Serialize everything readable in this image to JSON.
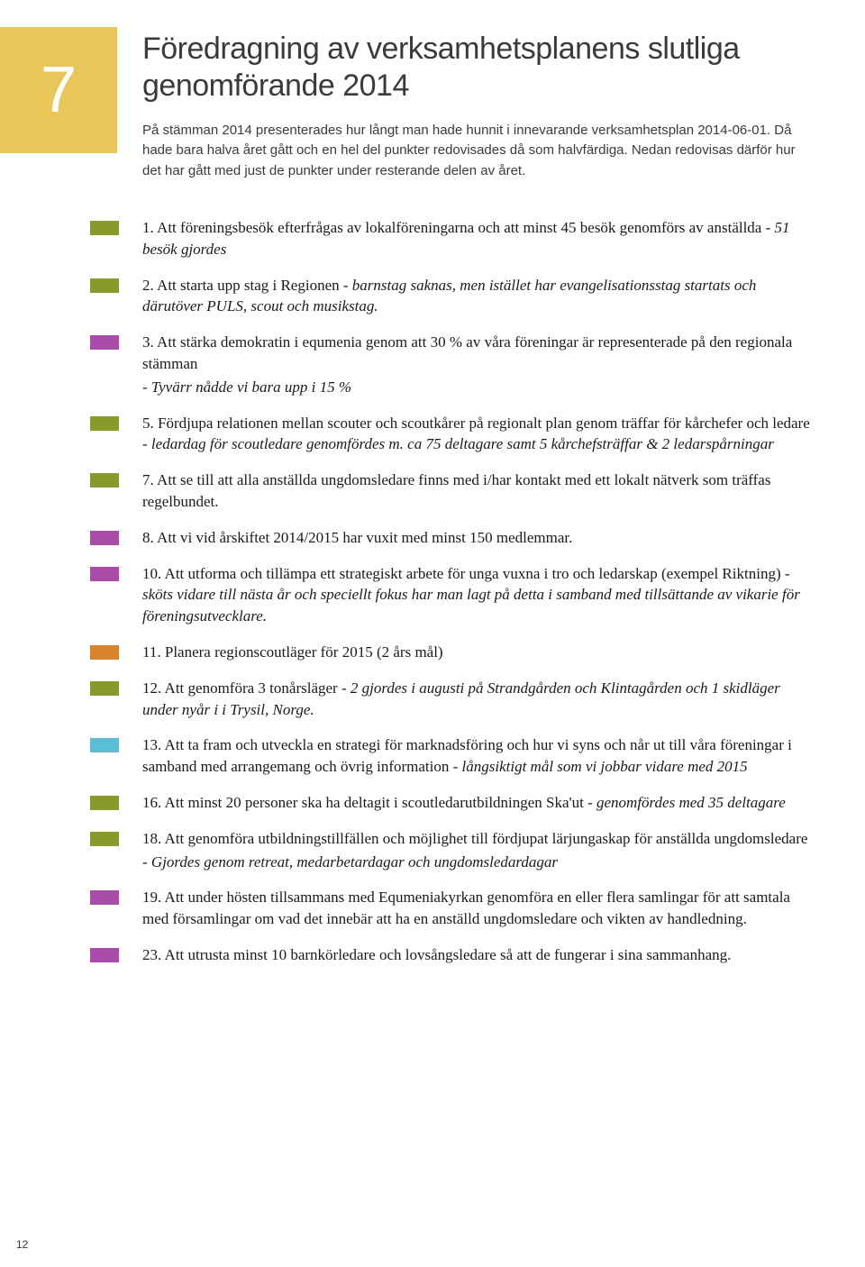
{
  "colors": {
    "number_box_bg": "#e8c65a",
    "olive": "#8a9a2a",
    "purple": "#a84ca8",
    "orange": "#d9822b",
    "cyan": "#5abfd6"
  },
  "section_number": "7",
  "title": "Föredragning av verksamhetsplanens slutliga genomförande 2014",
  "intro": "På stämman 2014 presenterades hur långt man hade hunnit i innevarande verksamhetsplan 2014-06-01. Då hade bara halva året gått och en hel del punkter redovisades då som halvfärdiga. Nedan redovisas därför hur det har gått med just de punkter under resterande delen av året.",
  "page_number": "12",
  "items": [
    {
      "color_key": "olive",
      "text": "1. Att föreningsbesök efterfrågas av lokalföreningarna och att minst 45 besök genomförs av anställda",
      "italic": " - 51 besök gjordes"
    },
    {
      "color_key": "olive",
      "text": "2. Att starta upp stag i Regionen",
      "italic": " - barnstag saknas, men istället har evangelisationsstag startats och därutöver PULS, scout och musikstag."
    },
    {
      "color_key": "purple",
      "text": "3. Att stärka demokratin i equmenia genom att 30 % av våra föreningar är representerade på den regionala stämman",
      "sub_italic": "- Tyvärr nådde vi bara upp i 15 %"
    },
    {
      "color_key": "olive",
      "text": "5. Fördjupa relationen mellan scouter och scoutkårer på regionalt plan genom träffar för kårchefer och ledare -",
      "italic": " ledardag för scoutledare genomfördes m. ca 75 deltagare samt 5 kårchefsträffar & 2 ledarspårningar"
    },
    {
      "color_key": "olive",
      "text": "7. Att se till att alla anställda ungdomsledare finns med i/har kontakt med ett lokalt nätverk som träffas regelbundet."
    },
    {
      "color_key": "purple",
      "text": "8. Att vi vid årskiftet 2014/2015 har vuxit med minst 150 medlemmar."
    },
    {
      "color_key": "purple",
      "text": "10. Att utforma och tillämpa ett strategiskt arbete för unga vuxna i tro och ledarskap (exempel Riktning) -",
      "italic": " sköts vidare till nästa år och speciellt fokus har man lagt på detta i samband med tillsättande av vikarie för föreningsutvecklare."
    },
    {
      "color_key": "orange",
      "text": "11. Planera regionscoutläger för 2015 (2 års mål)"
    },
    {
      "color_key": "olive",
      "text": "12. Att genomföra 3 tonårsläger -",
      "italic": " 2 gjordes i augusti på Strandgården och Klintagården och 1 skidläger under nyår i i Trysil, Norge."
    },
    {
      "color_key": "cyan",
      "text": "13. Att ta fram och utveckla en strategi för marknadsföring och hur vi syns och når ut till våra föreningar i samband med arrangemang och övrig information -",
      "italic": " långsiktigt mål som vi jobbar vidare med 2015"
    },
    {
      "color_key": "olive",
      "text": "16. Att minst 20 personer ska ha deltagit i scoutledarutbildningen Ska'ut -",
      "italic": " genomfördes med 35 deltagare"
    },
    {
      "color_key": "olive",
      "text": "18. Att genomföra utbildningstillfällen och möjlighet till fördjupat lärjungaskap för anställda ungdomsledare",
      "sub_italic": "- Gjordes genom retreat, medarbetardagar och ungdomsledardagar"
    },
    {
      "color_key": "purple",
      "text": "19. Att under hösten tillsammans med Equmeniakyrkan genomföra en eller flera samlingar för att samtala med församlingar om vad det innebär att ha en anställd ungdomsledare och vikten av handledning."
    },
    {
      "color_key": "purple",
      "text": "23. Att utrusta minst 10 barnkörledare och lovsångsledare så att de fungerar i sina sammanhang."
    }
  ]
}
